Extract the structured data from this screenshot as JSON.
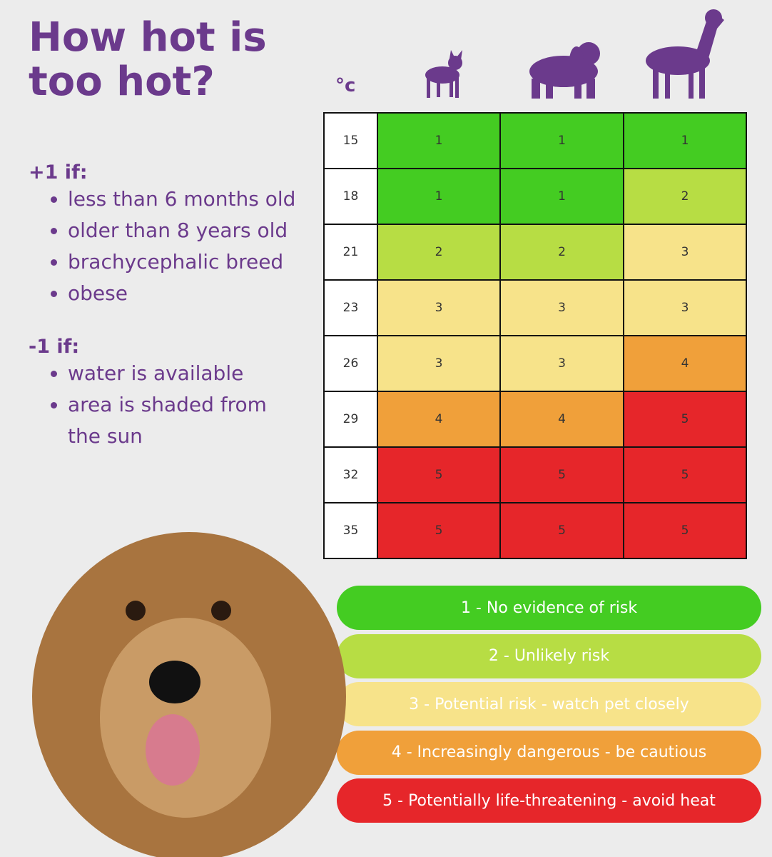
{
  "title": "How hot is too hot?",
  "plus_rules": {
    "heading": "+1 if:",
    "items": [
      "less than 6 months old",
      "older than 8 years old",
      "brachycephalic breed",
      "obese"
    ]
  },
  "minus_rules": {
    "heading": "-1 if:",
    "items": [
      "water is available",
      "area is shaded from the sun"
    ]
  },
  "table": {
    "unit": "°c",
    "rows": [
      [
        15,
        1,
        1,
        1
      ],
      [
        18,
        1,
        1,
        2
      ],
      [
        21,
        2,
        2,
        3
      ],
      [
        23,
        3,
        3,
        3
      ],
      [
        26,
        3,
        3,
        4
      ],
      [
        29,
        4,
        4,
        5
      ],
      [
        32,
        5,
        5,
        5
      ],
      [
        35,
        5,
        5,
        5
      ]
    ]
  },
  "legend": [
    {
      "label": "1 - No evidence of risk",
      "color": "#44cc22"
    },
    {
      "label": "2 - Unlikely risk",
      "color": "#b7dd44"
    },
    {
      "label": "3 - Potential risk - watch pet closely",
      "color": "#f7e38a"
    },
    {
      "label": "4 - Increasingly dangerous - be cautious",
      "color": "#f0a03a"
    },
    {
      "label": "5 - Potentially life-threatening - avoid heat",
      "color": "#e6262a"
    }
  ]
}
